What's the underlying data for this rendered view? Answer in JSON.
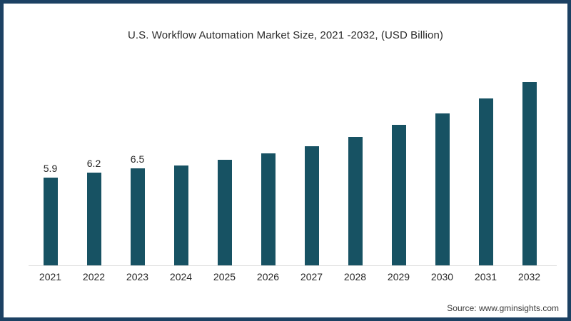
{
  "frame": {
    "border_color": "#1c4163",
    "background_color": "#ffffff"
  },
  "chart_data": {
    "type": "bar",
    "title": "U.S. Workflow Automation Market Size, 2021 -2032, (USD Billion)",
    "categories": [
      "2021",
      "2022",
      "2023",
      "2024",
      "2025",
      "2026",
      "2027",
      "2028",
      "2029",
      "2030",
      "2031",
      "2032"
    ],
    "values": [
      5.9,
      6.2,
      6.5,
      6.7,
      7.1,
      7.5,
      8.0,
      8.6,
      9.4,
      10.2,
      11.2,
      12.3
    ],
    "data_labels": [
      "5.9",
      "6.2",
      "6.5",
      "",
      "",
      "",
      "",
      "",
      "",
      "",
      "",
      ""
    ],
    "xlabel": "",
    "ylabel": "",
    "ylim": [
      0,
      13.2
    ],
    "grid": false,
    "legend": false,
    "bar_color": "#175263",
    "axis_line_color": "#dcdcdc",
    "text_color": "#262626"
  },
  "source": {
    "label": "Source: www.gminsights.com"
  }
}
